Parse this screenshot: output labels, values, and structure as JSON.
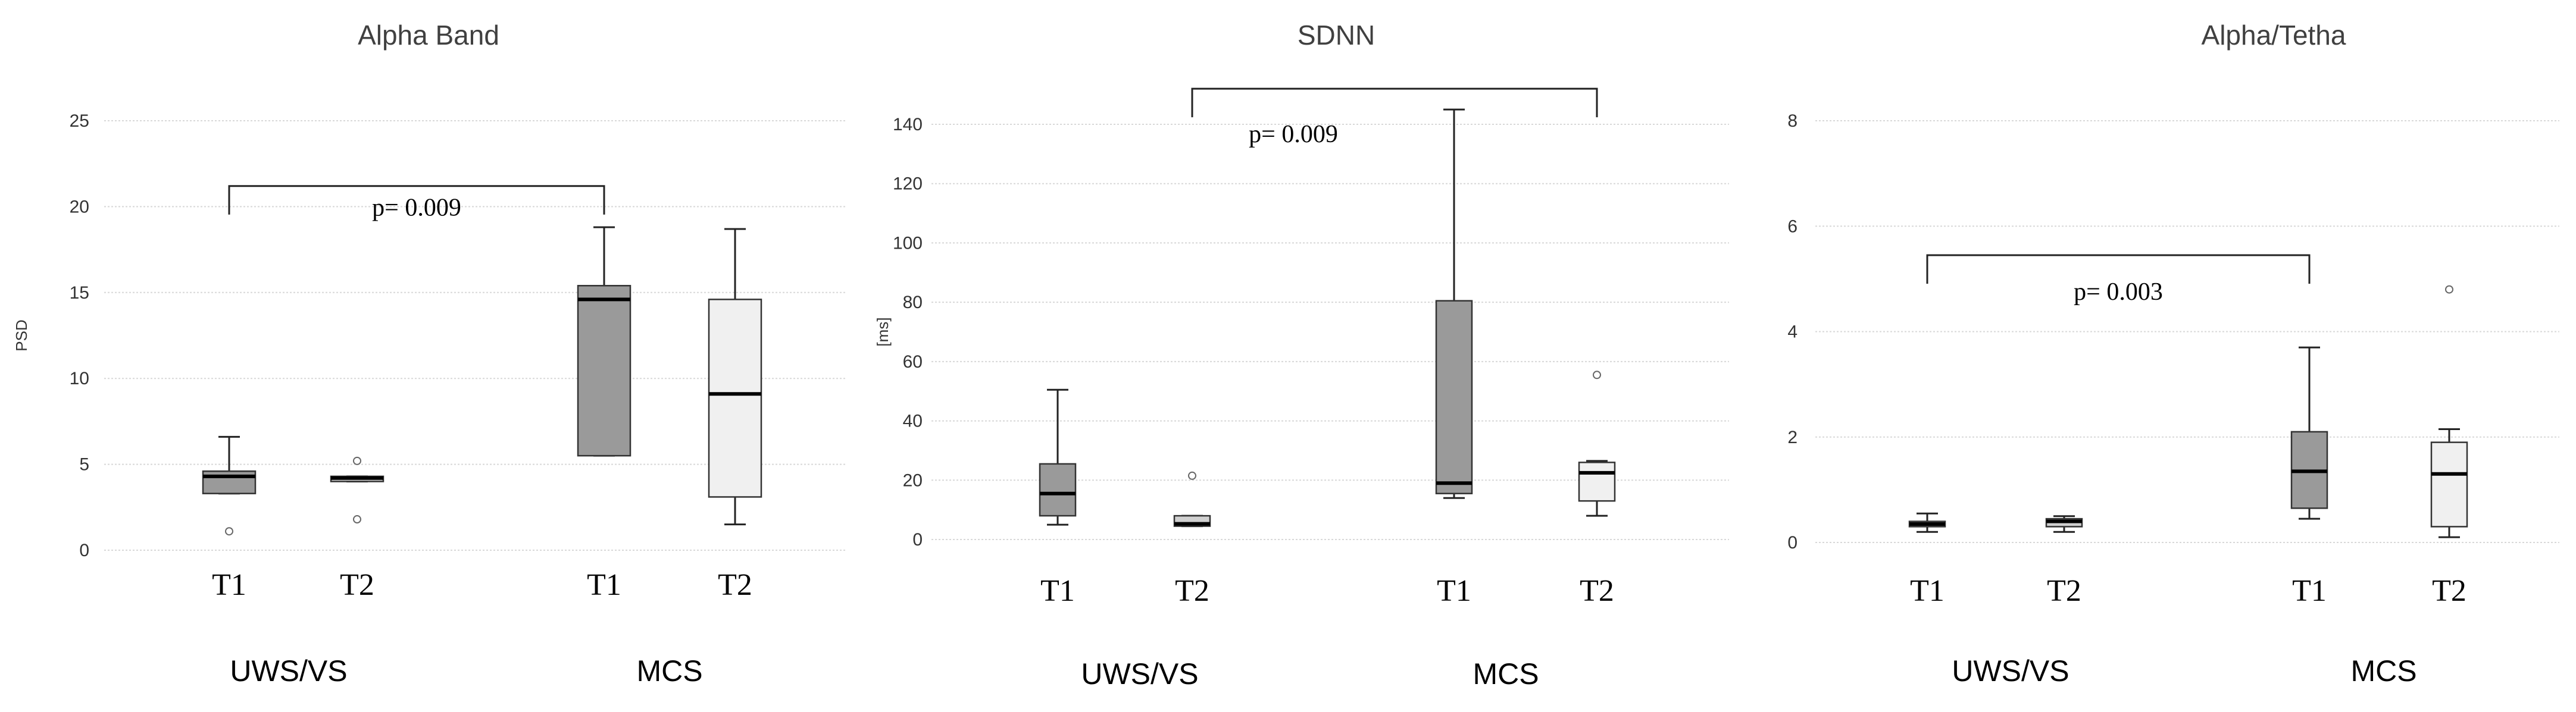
{
  "chart_data": [
    {
      "type": "box",
      "title": "Alpha Band",
      "ylabel": "PSD",
      "xlabel": "",
      "ylim": [
        0,
        25
      ],
      "yticks": [
        0,
        5,
        10,
        15,
        20,
        25
      ],
      "grid": true,
      "groups": [
        "UWS/VS",
        "MCS"
      ],
      "boxes": [
        {
          "group": "UWS/VS",
          "label": "T1",
          "fill": "#9a9a9a",
          "whisker_low": 3.3,
          "q1": 3.3,
          "median": 4.3,
          "q3": 4.6,
          "whisker_high": 6.6,
          "outliers": [
            1.1
          ]
        },
        {
          "group": "UWS/VS",
          "label": "T2",
          "fill": "#d0d0d0",
          "whisker_low": 4.0,
          "q1": 4.0,
          "median": 4.2,
          "q3": 4.3,
          "whisker_high": 4.3,
          "outliers": [
            5.2,
            1.8
          ]
        },
        {
          "group": "MCS",
          "label": "T1",
          "fill": "#9a9a9a",
          "whisker_low": 5.5,
          "q1": 5.5,
          "median": 14.6,
          "q3": 15.4,
          "whisker_high": 18.8,
          "outliers": []
        },
        {
          "group": "MCS",
          "label": "T2",
          "fill": "#f0f0f0",
          "whisker_low": 1.5,
          "q1": 3.1,
          "median": 9.1,
          "q3": 14.6,
          "whisker_high": 18.7,
          "outliers": []
        }
      ],
      "annotations": [
        {
          "text": "p= 0.009",
          "from_box": 0,
          "to_box": 2,
          "bracket_y": 21.2
        }
      ]
    },
    {
      "type": "box",
      "title": "SDNN",
      "ylabel": "[ms]",
      "xlabel": "",
      "ylim": [
        0,
        150
      ],
      "yticks": [
        0,
        20,
        40,
        60,
        80,
        100,
        120,
        140
      ],
      "grid": true,
      "groups": [
        "UWS/VS",
        "MCS"
      ],
      "boxes": [
        {
          "group": "UWS/VS",
          "label": "T1",
          "fill": "#9a9a9a",
          "whisker_low": 5,
          "q1": 8,
          "median": 15.5,
          "q3": 25.5,
          "whisker_high": 50.5,
          "outliers": []
        },
        {
          "group": "UWS/VS",
          "label": "T2",
          "fill": "#d0d0d0",
          "whisker_low": 4.5,
          "q1": 4.5,
          "median": 5.3,
          "q3": 8,
          "whisker_high": 8,
          "outliers": [
            21.5
          ]
        },
        {
          "group": "MCS",
          "label": "T1",
          "fill": "#9a9a9a",
          "whisker_low": 14,
          "q1": 15.5,
          "median": 19,
          "q3": 80.5,
          "whisker_high": 145,
          "outliers": []
        },
        {
          "group": "MCS",
          "label": "T2",
          "fill": "#f0f0f0",
          "whisker_low": 8,
          "q1": 13,
          "median": 22.5,
          "q3": 26,
          "whisker_high": 26.5,
          "outliers": [
            55.5
          ]
        }
      ],
      "annotations": [
        {
          "text": "p= 0.009",
          "from_box": 1,
          "to_box": 3,
          "bracket_y": 152
        }
      ]
    },
    {
      "type": "box",
      "title": "Alpha/Tetha",
      "ylabel": "",
      "xlabel": "",
      "ylim": [
        0,
        8
      ],
      "yticks": [
        0,
        2,
        4,
        6,
        8
      ],
      "grid": true,
      "groups": [
        "UWS/VS",
        "MCS"
      ],
      "boxes": [
        {
          "group": "UWS/VS",
          "label": "T1",
          "fill": "#9a9a9a",
          "whisker_low": 0.2,
          "q1": 0.3,
          "median": 0.35,
          "q3": 0.4,
          "whisker_high": 0.55,
          "outliers": []
        },
        {
          "group": "UWS/VS",
          "label": "T2",
          "fill": "#d0d0d0",
          "whisker_low": 0.2,
          "q1": 0.3,
          "median": 0.4,
          "q3": 0.45,
          "whisker_high": 0.5,
          "outliers": []
        },
        {
          "group": "MCS",
          "label": "T1",
          "fill": "#9a9a9a",
          "whisker_low": 0.45,
          "q1": 0.65,
          "median": 1.35,
          "q3": 2.1,
          "whisker_high": 3.7,
          "outliers": []
        },
        {
          "group": "MCS",
          "label": "T2",
          "fill": "#f0f0f0",
          "whisker_low": 0.1,
          "q1": 0.3,
          "median": 1.3,
          "q3": 1.9,
          "whisker_high": 2.15,
          "outliers": [
            4.8
          ]
        }
      ],
      "annotations": [
        {
          "text": "p= 0.003",
          "from_box": 0,
          "to_box": 2,
          "bracket_y": 5.45
        }
      ]
    }
  ]
}
